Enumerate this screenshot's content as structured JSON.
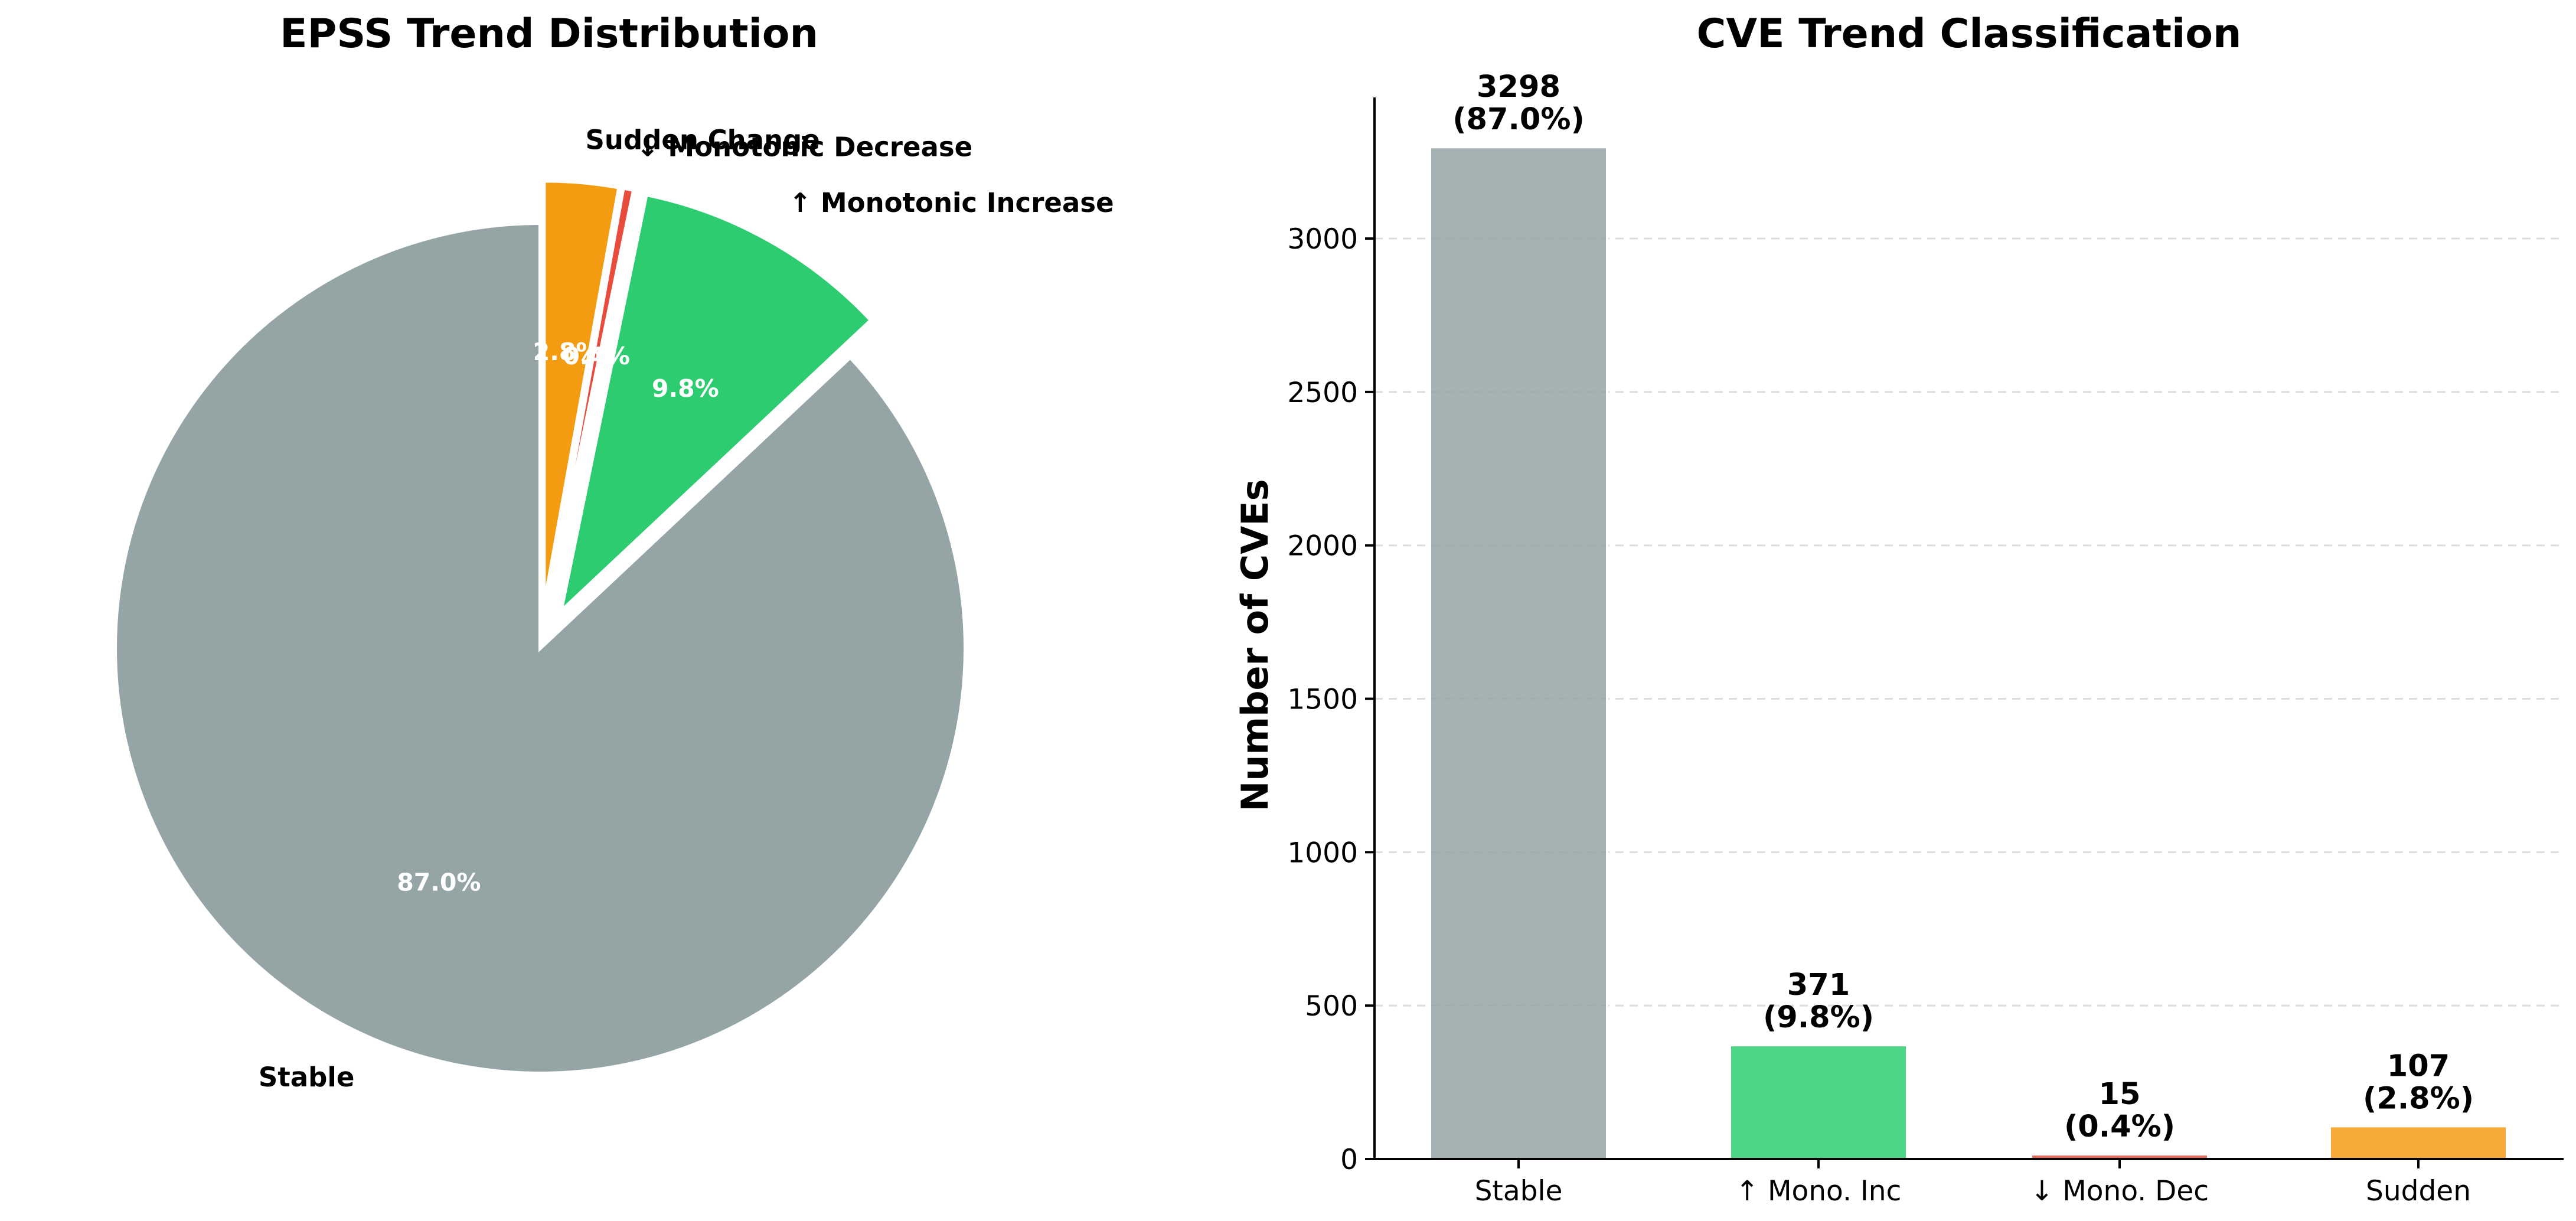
{
  "chart_data": [
    {
      "type": "pie",
      "title": "EPSS Trend Distribution",
      "slices": [
        {
          "label": "Stable",
          "value": 3298,
          "pct_text": "87.0%",
          "color": "#95a5a6",
          "exploded": false
        },
        {
          "label": "↑ Monotonic Increase",
          "value": 371,
          "pct_text": "9.8%",
          "color": "#2ecc71",
          "exploded": true
        },
        {
          "label": "↓ Monotonic Decrease",
          "value": 15,
          "pct_text": "0.4%",
          "color": "#e74c3c",
          "exploded": true
        },
        {
          "label": "Sudden Change",
          "value": 107,
          "pct_text": "2.8%",
          "color": "#f39c12",
          "exploded": true
        }
      ]
    },
    {
      "type": "bar",
      "title": "CVE Trend Classification",
      "categories": [
        "Stable",
        "↑ Mono. Inc",
        "↓ Mono. Dec",
        "Sudden"
      ],
      "values": [
        3298,
        371,
        15,
        107
      ],
      "value_labels": [
        "3298",
        "371",
        "15",
        "107"
      ],
      "pct_labels": [
        "(87.0%)",
        "(9.8%)",
        "(0.4%)",
        "(2.8%)"
      ],
      "colors": [
        "#95a5a6",
        "#2ecc71",
        "#e74c3c",
        "#f39c12"
      ],
      "xlabel": "",
      "ylabel": "Number of CVEs",
      "ylim": [
        0,
        3460
      ],
      "yticks": [
        0,
        500,
        1000,
        1500,
        2000,
        2500,
        3000
      ],
      "grid": "y-dashed"
    }
  ]
}
